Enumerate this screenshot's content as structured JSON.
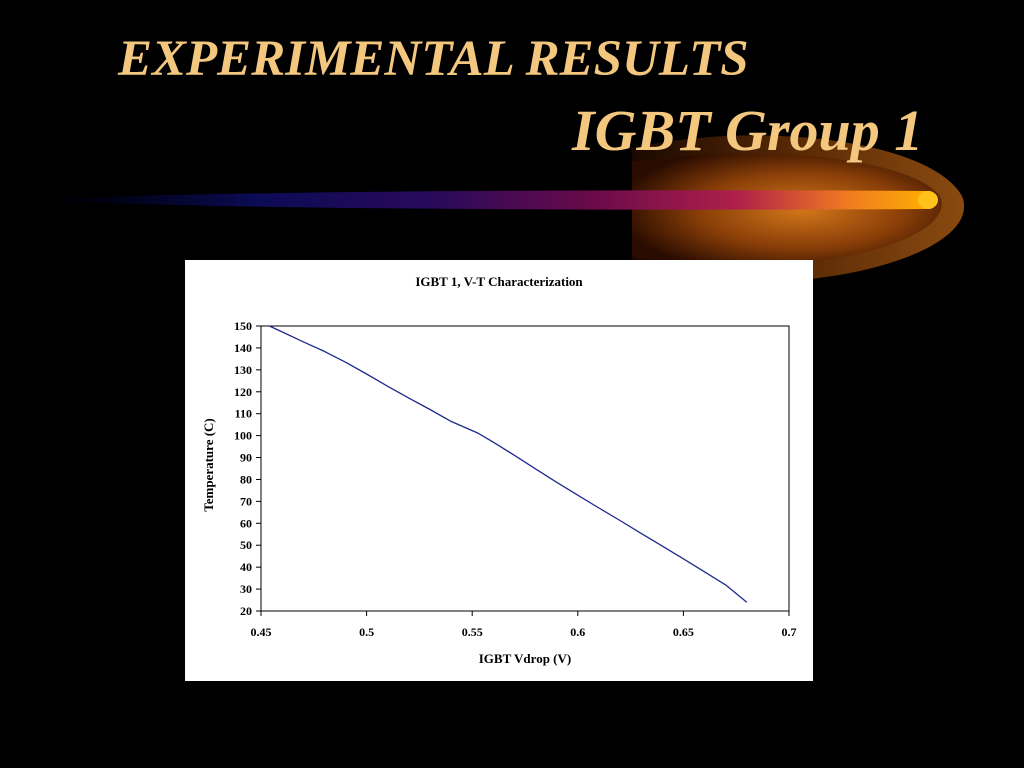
{
  "slide": {
    "title_line1": "EXPERIMENTAL RESULTS",
    "title_line2": "IGBT Group 1",
    "title_color": "#F4C77F",
    "background_color": "#000000"
  },
  "chart_data": {
    "type": "line",
    "title": "IGBT 1, V-T Characterization",
    "xlabel": "IGBT Vdrop (V)",
    "ylabel": "Temperature (C)",
    "xlim": [
      0.45,
      0.7
    ],
    "ylim": [
      20,
      150
    ],
    "xticks": [
      "0.45",
      "0.5",
      "0.55",
      "0.6",
      "0.65",
      "0.7"
    ],
    "yticks": [
      "20",
      "30",
      "40",
      "50",
      "60",
      "70",
      "80",
      "90",
      "100",
      "110",
      "120",
      "130",
      "140",
      "150"
    ],
    "grid": false,
    "legend": "none",
    "line_color": "#1F2A8C",
    "series": [
      {
        "x": [
          0.454,
          0.46,
          0.47,
          0.48,
          0.49,
          0.5,
          0.51,
          0.52,
          0.53,
          0.54,
          0.553,
          0.56,
          0.57,
          0.58,
          0.59,
          0.6,
          0.61,
          0.62,
          0.63,
          0.64,
          0.65,
          0.66,
          0.67,
          0.68
        ],
        "y": [
          150,
          147.3,
          142.8,
          138.4,
          133.5,
          128.1,
          122.5,
          117.1,
          111.9,
          106.5,
          101,
          97,
          91,
          84.8,
          78.7,
          72.8,
          67,
          61.3,
          55.4,
          49.6,
          43.8,
          37.9,
          31.9,
          24
        ]
      }
    ]
  }
}
